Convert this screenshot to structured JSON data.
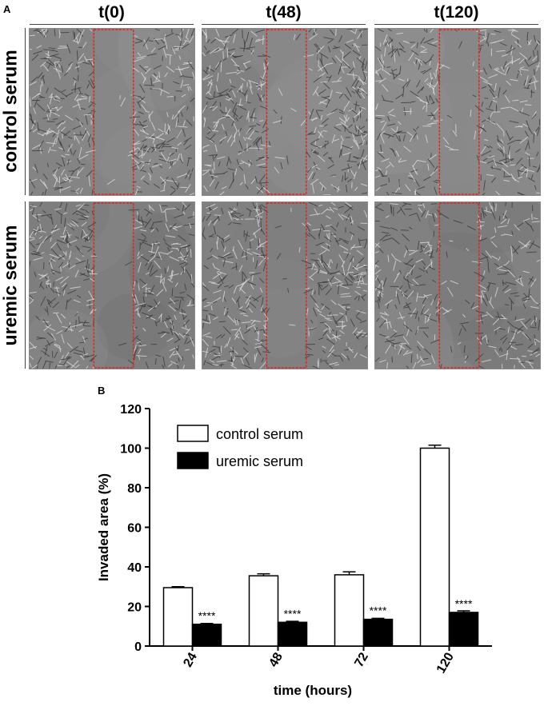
{
  "panel_a": {
    "letter": "A",
    "columns": [
      {
        "title": "t(0)",
        "gap": 0.24
      },
      {
        "title": "t(48)",
        "gap": 0.24
      },
      {
        "title": "t(120)",
        "gap": 0.24
      }
    ],
    "rows": [
      "control serum",
      "uremic serum"
    ],
    "region_color": "#e2241b"
  },
  "panel_b": {
    "letter": "B"
  },
  "chart_data": {
    "type": "bar",
    "categories": [
      "24",
      "48",
      "72",
      "120"
    ],
    "series": [
      {
        "name": "control serum",
        "values": [
          29.5,
          35.5,
          36,
          100
        ],
        "errors": [
          0.5,
          1,
          1.5,
          1.5
        ],
        "color": "#ffffff"
      },
      {
        "name": "uremic serum",
        "values": [
          11,
          12,
          13.5,
          17
        ],
        "errors": [
          0.4,
          0.5,
          0.5,
          0.8
        ],
        "color": "#000000"
      }
    ],
    "annotations": [
      "****",
      "****",
      "****",
      "****"
    ],
    "xlabel": "time (hours)",
    "ylabel": "Invaded area (%)",
    "ylim": [
      0,
      120
    ],
    "yticks": [
      0,
      20,
      40,
      60,
      80,
      100,
      120
    ],
    "legend": "top-left",
    "grid": false
  }
}
